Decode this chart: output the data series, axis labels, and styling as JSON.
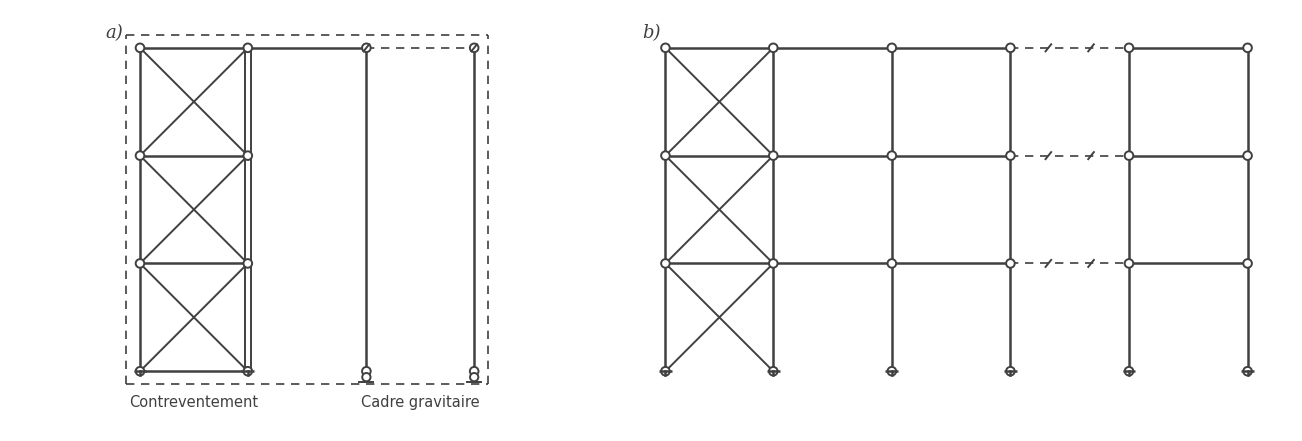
{
  "fig_width": 13.02,
  "fig_height": 4.41,
  "dpi": 100,
  "line_color": "#404040",
  "lw": 1.4,
  "lw_thick": 1.8,
  "lw_dash": 1.2,
  "node_r": 0.04,
  "label_a": "a)",
  "label_b": "b)",
  "label_contreventement": "Contreventement",
  "label_cadre": "Cadre gravitaire",
  "font_size": 10.5
}
